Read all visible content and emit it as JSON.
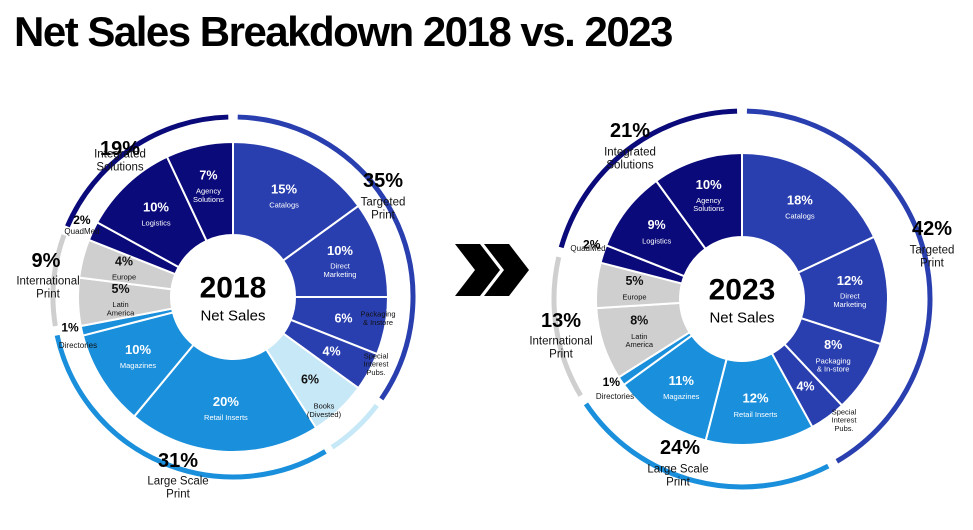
{
  "title": "Net Sales Breakdown 2018 vs. 2023",
  "colors": {
    "integrated": "#0a0a7a",
    "targeted": "#2a3faf",
    "large_scale": "#1a8fdb",
    "international": "#cfcfcf",
    "books": "#c7e8f7",
    "arrow": "#000000"
  },
  "arrow_icon": "double-chevron-right-icon",
  "chart_data": [
    {
      "type": "donut",
      "center_year": "2018",
      "center_label": "Net Sales",
      "segments": [
        {
          "pct": "15%",
          "value": 15,
          "label": "Catalogs",
          "group": "targeted"
        },
        {
          "pct": "10%",
          "value": 10,
          "label": "Direct\nMarketing",
          "group": "targeted"
        },
        {
          "pct": "6%",
          "value": 6,
          "label": "",
          "group": "targeted"
        },
        {
          "pct": "4%",
          "value": 4,
          "label": "",
          "group": "targeted"
        },
        {
          "pct": "6%",
          "value": 6,
          "label": "",
          "group": "books"
        },
        {
          "pct": "20%",
          "value": 20,
          "label": "Retail Inserts",
          "group": "large_scale"
        },
        {
          "pct": "10%",
          "value": 10,
          "label": "Magazines",
          "group": "large_scale"
        },
        {
          "pct": "1%",
          "value": 1,
          "label": "",
          "group": "large_scale"
        },
        {
          "pct": "5%",
          "value": 5,
          "label": "Latin\nAmerica",
          "group": "international"
        },
        {
          "pct": "4%",
          "value": 4,
          "label": "Europe",
          "group": "international"
        },
        {
          "pct": "2%",
          "value": 2,
          "label": "",
          "group": "integrated"
        },
        {
          "pct": "10%",
          "value": 10,
          "label": "Logistics",
          "group": "integrated"
        },
        {
          "pct": "7%",
          "value": 7,
          "label": "Agency\nSolutions",
          "group": "integrated"
        }
      ],
      "external_labels": [
        {
          "name": "Packaging\n& Instore",
          "segment": 2
        },
        {
          "name": "Special\nInterest\nPubs.",
          "segment": 3
        },
        {
          "name": "Books\n(Divested)",
          "segment": 4
        },
        {
          "name": "Directories",
          "segment": 7
        },
        {
          "name": "QuadMed",
          "segment": 10
        }
      ],
      "groups": [
        {
          "key": "integrated",
          "pct": "19%",
          "name": "Integrated\nSolutions",
          "value": 19
        },
        {
          "key": "targeted",
          "pct": "35%",
          "name": "Targeted\nPrint",
          "value": 35
        },
        {
          "key": "large_scale",
          "pct": "31%",
          "name": "Large Scale\nPrint",
          "value": 31
        },
        {
          "key": "international",
          "pct": "9%",
          "name": "International\nPrint",
          "value": 9
        }
      ]
    },
    {
      "type": "donut",
      "center_year": "2023",
      "center_label": "Net Sales",
      "segments": [
        {
          "pct": "18%",
          "value": 18,
          "label": "Catalogs",
          "group": "targeted"
        },
        {
          "pct": "12%",
          "value": 12,
          "label": "Direct\nMarketing",
          "group": "targeted"
        },
        {
          "pct": "8%",
          "value": 8,
          "label": "Packaging\n& In-store",
          "group": "targeted"
        },
        {
          "pct": "4%",
          "value": 4,
          "label": "",
          "group": "targeted"
        },
        {
          "pct": "12%",
          "value": 12,
          "label": "Retail Inserts",
          "group": "large_scale"
        },
        {
          "pct": "11%",
          "value": 11,
          "label": "Magazines",
          "group": "large_scale"
        },
        {
          "pct": "1%",
          "value": 1,
          "label": "",
          "group": "large_scale"
        },
        {
          "pct": "8%",
          "value": 8,
          "label": "Latin\nAmerica",
          "group": "international"
        },
        {
          "pct": "5%",
          "value": 5,
          "label": "Europe",
          "group": "international"
        },
        {
          "pct": "2%",
          "value": 2,
          "label": "",
          "group": "integrated"
        },
        {
          "pct": "9%",
          "value": 9,
          "label": "Logistics",
          "group": "integrated"
        },
        {
          "pct": "10%",
          "value": 10,
          "label": "Agency\nSolutions",
          "group": "integrated"
        }
      ],
      "external_labels": [
        {
          "name": "Special\nInterest\nPubs.",
          "segment": 3
        },
        {
          "name": "Directories",
          "segment": 6
        },
        {
          "name": "QuadMed",
          "segment": 9
        }
      ],
      "groups": [
        {
          "key": "integrated",
          "pct": "21%",
          "name": "Integrated\nSolutions",
          "value": 21
        },
        {
          "key": "targeted",
          "pct": "42%",
          "name": "Targeted\nPrint",
          "value": 42
        },
        {
          "key": "large_scale",
          "pct": "24%",
          "name": "Large Scale\nPrint",
          "value": 24
        },
        {
          "key": "international",
          "pct": "13%",
          "name": "International\nPrint",
          "value": 13
        }
      ]
    }
  ]
}
